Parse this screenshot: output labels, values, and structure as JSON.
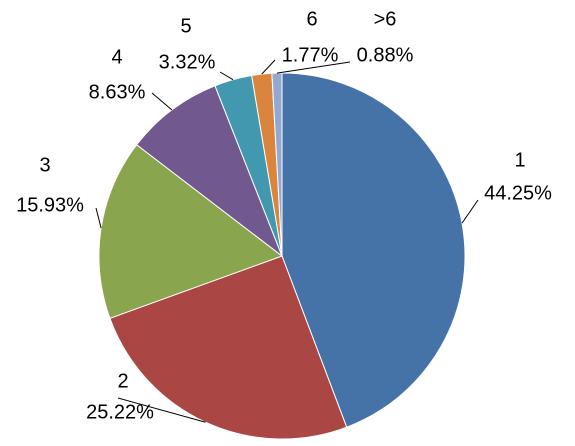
{
  "chart_data": {
    "type": "pie",
    "categories": [
      "1",
      "2",
      "3",
      "4",
      "5",
      "6",
      ">6"
    ],
    "values": [
      44.25,
      25.22,
      15.93,
      8.63,
      3.32,
      1.77,
      0.88
    ],
    "value_labels": [
      "44.25%",
      "25.22%",
      "15.93%",
      "8.63%",
      "3.32%",
      "1.77%",
      "0.88%"
    ],
    "colors": [
      "#4572a7",
      "#aa4643",
      "#89a54e",
      "#71588f",
      "#4198af",
      "#db843d",
      "#93a9cf"
    ]
  }
}
